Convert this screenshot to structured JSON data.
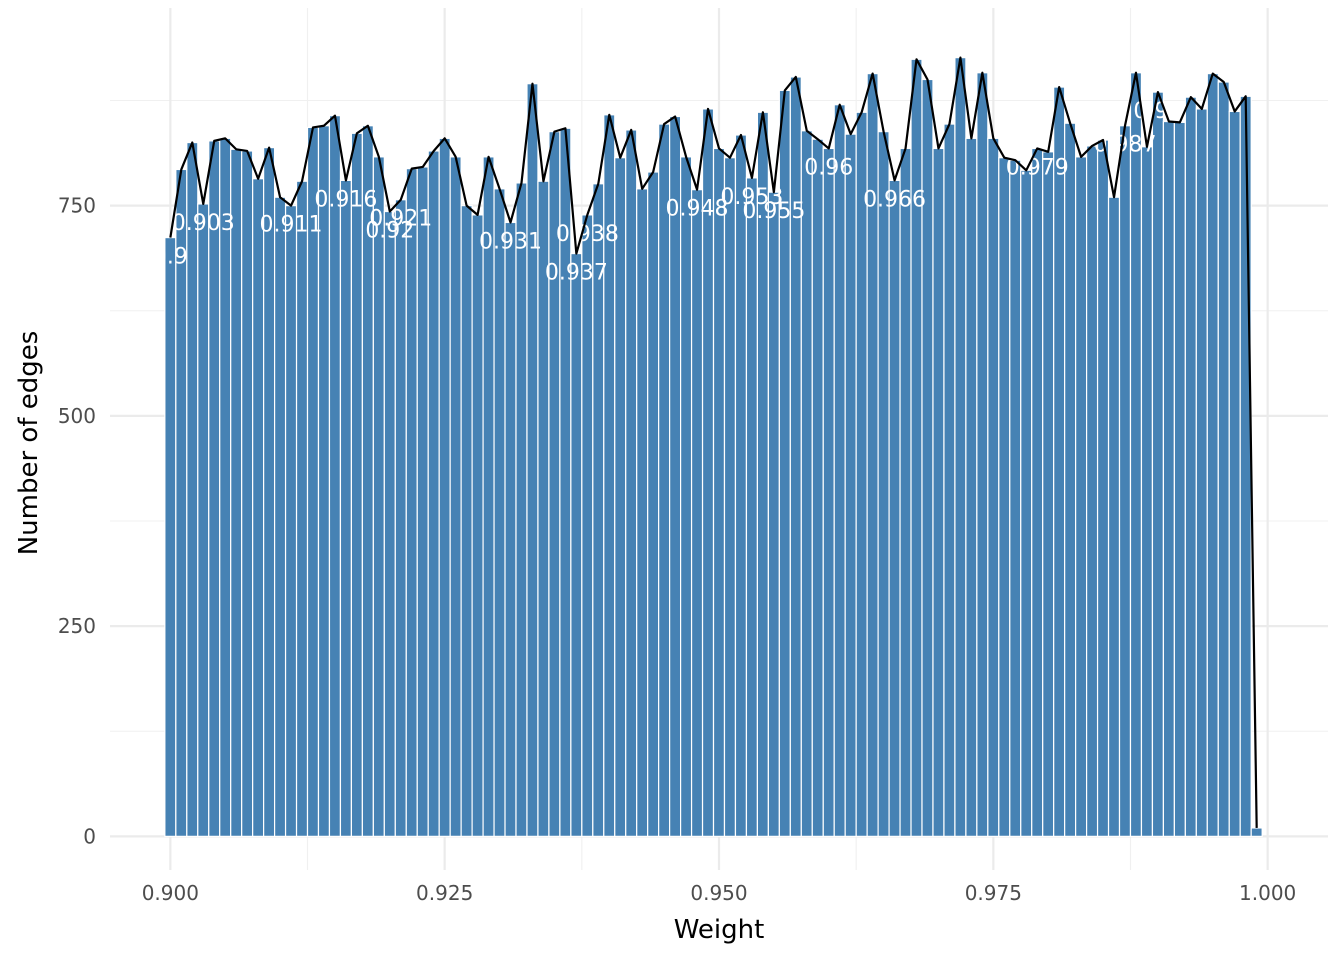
{
  "chart_data": {
    "type": "bar",
    "xlabel": "Weight",
    "ylabel": "Number of edges",
    "xlim": [
      0.8945,
      1.0055
    ],
    "ylim": [
      -40,
      985
    ],
    "x_ticks": [
      0.9,
      0.925,
      0.95,
      0.975,
      1.0
    ],
    "x_tick_labels": [
      "0.900",
      "0.925",
      "0.950",
      "0.975",
      "1.000"
    ],
    "y_ticks": [
      0,
      250,
      500,
      750
    ],
    "y_tick_labels": [
      "0",
      "250",
      "500",
      "750"
    ],
    "grid": true,
    "legend": "none",
    "bar_color": "#4682b4",
    "line_color": "#000000",
    "bin_width": 0.001,
    "x_start": 0.9,
    "values": [
      712,
      793,
      825,
      752,
      827,
      830,
      817,
      815,
      782,
      819,
      760,
      750,
      779,
      843,
      845,
      857,
      780,
      836,
      845,
      808,
      743,
      757,
      794,
      796,
      815,
      830,
      808,
      750,
      739,
      808,
      770,
      730,
      777,
      895,
      779,
      838,
      842,
      693,
      739,
      776,
      858,
      807,
      840,
      770,
      790,
      847,
      856,
      808,
      769,
      865,
      818,
      807,
      834,
      783,
      861,
      766,
      887,
      903,
      839,
      829,
      818,
      870,
      835,
      861,
      907,
      838,
      780,
      818,
      924,
      900,
      818,
      847,
      926,
      830,
      908,
      830,
      807,
      804,
      792,
      818,
      814,
      891,
      848,
      808,
      821,
      828,
      760,
      845,
      908,
      820,
      885,
      850,
      849,
      879,
      865,
      907,
      897,
      862,
      880,
      10
    ],
    "bar_labels": [
      {
        "x": 0.9,
        "text": "0.9"
      },
      {
        "x": 0.903,
        "text": "0.903"
      },
      {
        "x": 0.911,
        "text": "0.911"
      },
      {
        "x": 0.916,
        "text": "0.916"
      },
      {
        "x": 0.92,
        "text": "0.92"
      },
      {
        "x": 0.921,
        "text": "0.921"
      },
      {
        "x": 0.931,
        "text": "0.931"
      },
      {
        "x": 0.937,
        "text": "0.937"
      },
      {
        "x": 0.938,
        "text": "0.938"
      },
      {
        "x": 0.948,
        "text": "0.948"
      },
      {
        "x": 0.953,
        "text": "0.953"
      },
      {
        "x": 0.955,
        "text": "0.955"
      },
      {
        "x": 0.96,
        "text": "0.96"
      },
      {
        "x": 0.966,
        "text": "0.966"
      },
      {
        "x": 0.979,
        "text": "0.979"
      },
      {
        "x": 0.987,
        "text": "0.987"
      },
      {
        "x": 0.99,
        "text": "0.99"
      }
    ]
  }
}
